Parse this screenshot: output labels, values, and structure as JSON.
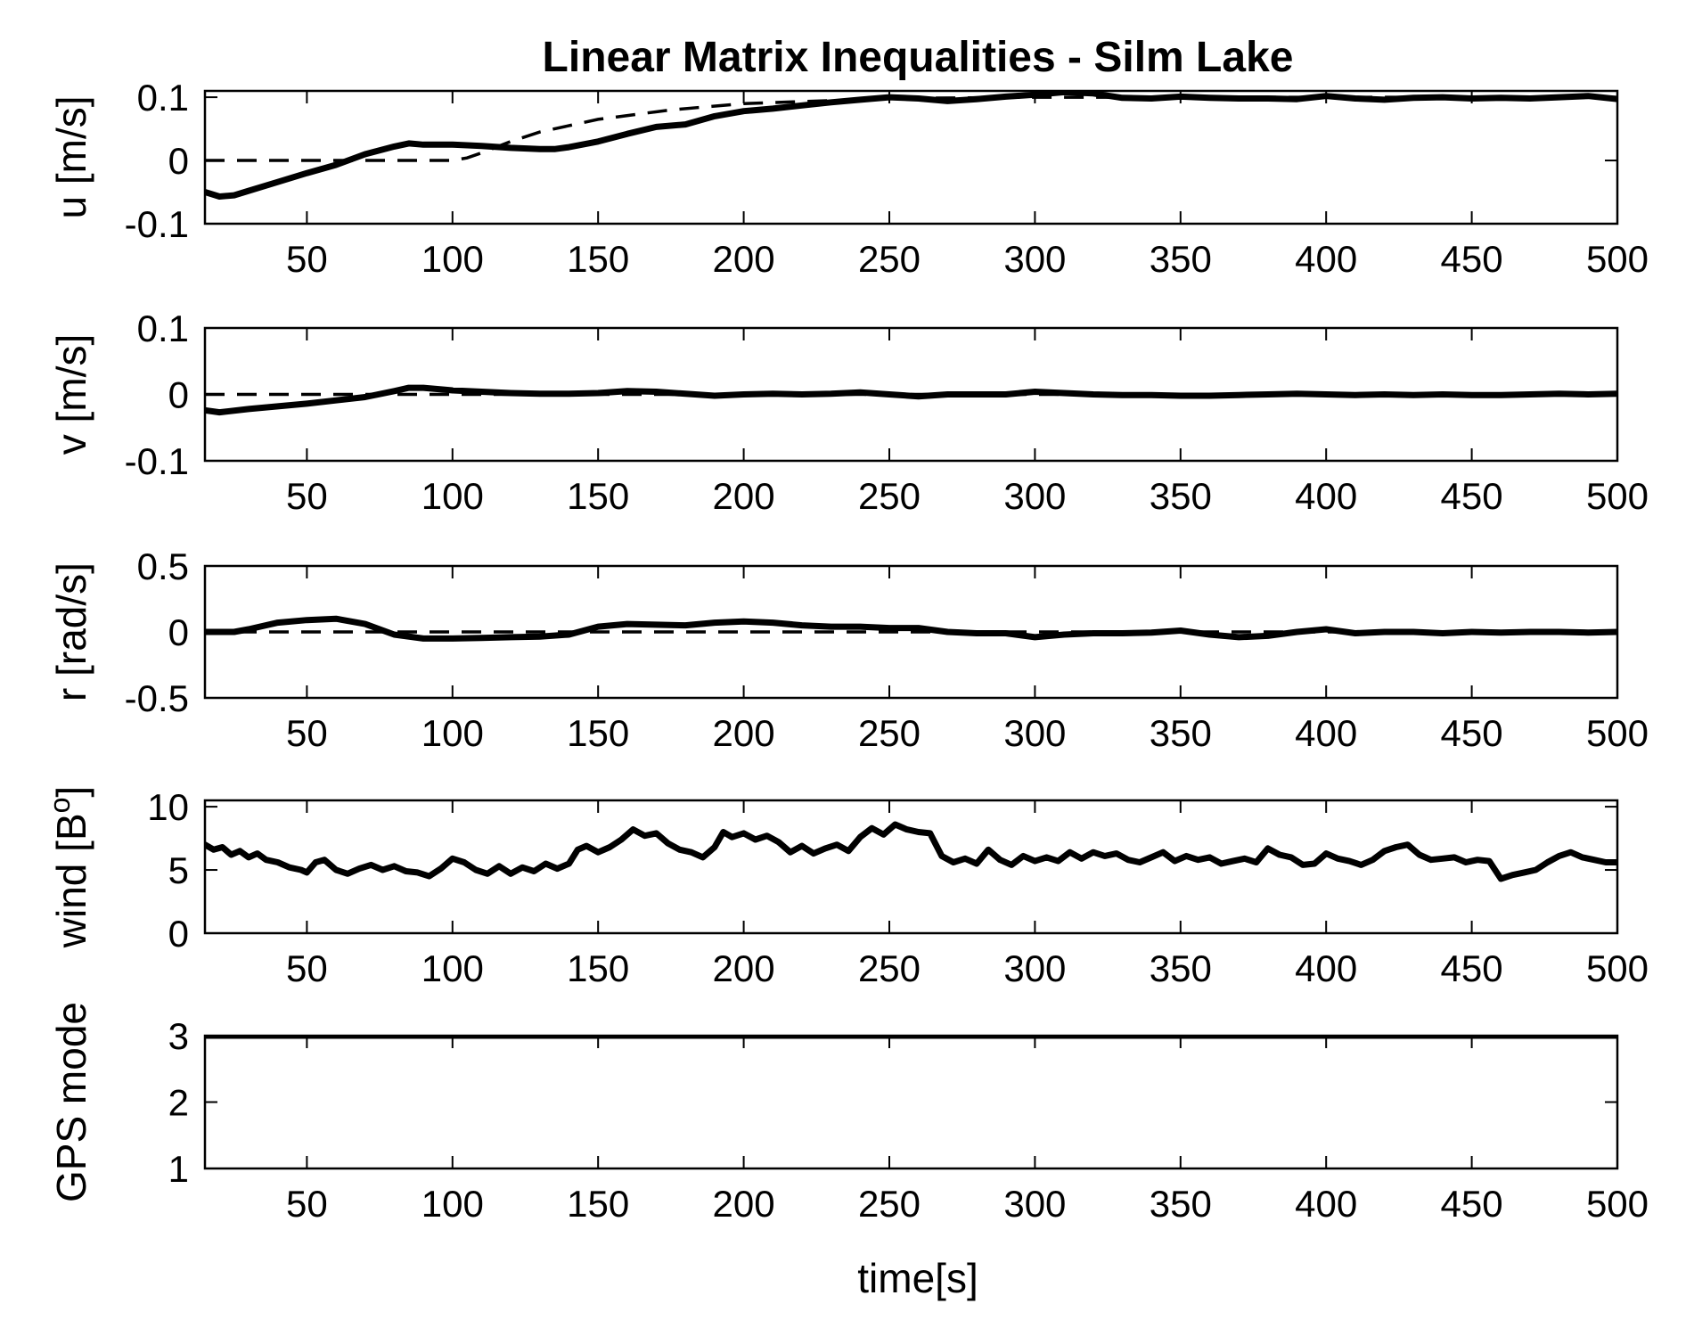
{
  "chart_data": {
    "type": "line",
    "title": "Linear Matrix Inequalities - Silm Lake",
    "xlabel": "time[s]",
    "xlim": [
      15,
      500
    ],
    "xticks": [
      50,
      100,
      150,
      200,
      250,
      300,
      350,
      400,
      450,
      500
    ],
    "subplots": [
      {
        "id": "u",
        "ylabel": "u [m/s]",
        "ylim": [
          -0.1,
          0.11
        ],
        "yticks": [
          -0.1,
          0,
          0.1
        ],
        "ytick_labels": [
          "-0.1",
          "0",
          "0.1"
        ],
        "measured": {
          "x": [
            15,
            20,
            25,
            30,
            40,
            50,
            60,
            70,
            80,
            85,
            90,
            100,
            110,
            120,
            130,
            135,
            140,
            150,
            160,
            170,
            180,
            190,
            200,
            210,
            220,
            230,
            240,
            250,
            260,
            270,
            280,
            290,
            300,
            310,
            320,
            330,
            340,
            350,
            360,
            370,
            380,
            390,
            400,
            410,
            420,
            430,
            440,
            450,
            460,
            470,
            480,
            490,
            500
          ],
          "y": [
            -0.05,
            -0.057,
            -0.055,
            -0.048,
            -0.034,
            -0.02,
            -0.007,
            0.01,
            0.022,
            0.027,
            0.025,
            0.025,
            0.023,
            0.02,
            0.018,
            0.018,
            0.021,
            0.03,
            0.042,
            0.053,
            0.057,
            0.07,
            0.078,
            0.082,
            0.087,
            0.092,
            0.096,
            0.1,
            0.098,
            0.094,
            0.097,
            0.101,
            0.104,
            0.108,
            0.106,
            0.099,
            0.098,
            0.101,
            0.099,
            0.098,
            0.098,
            0.097,
            0.102,
            0.098,
            0.096,
            0.099,
            0.1,
            0.098,
            0.099,
            0.098,
            0.1,
            0.102,
            0.097
          ]
        },
        "reference": {
          "x": [
            15,
            100,
            105,
            110,
            120,
            130,
            150,
            175,
            200,
            250,
            300,
            350,
            400,
            500
          ],
          "y": [
            0,
            0,
            0.004,
            0.012,
            0.03,
            0.045,
            0.065,
            0.08,
            0.09,
            0.098,
            0.1,
            0.1,
            0.1,
            0.1
          ]
        }
      },
      {
        "id": "v",
        "ylabel": "v [m/s]",
        "ylim": [
          -0.1,
          0.1
        ],
        "yticks": [
          -0.1,
          0,
          0.1
        ],
        "ytick_labels": [
          "-0.1",
          "0",
          "0.1"
        ],
        "measured": {
          "x": [
            15,
            20,
            30,
            40,
            50,
            60,
            70,
            80,
            85,
            90,
            100,
            110,
            120,
            130,
            140,
            150,
            160,
            170,
            180,
            190,
            200,
            210,
            220,
            230,
            240,
            250,
            260,
            270,
            280,
            290,
            300,
            310,
            320,
            330,
            340,
            350,
            360,
            370,
            380,
            390,
            400,
            410,
            420,
            430,
            440,
            450,
            460,
            470,
            480,
            490,
            500
          ],
          "y": [
            -0.024,
            -0.027,
            -0.022,
            -0.018,
            -0.014,
            -0.009,
            -0.004,
            0.005,
            0.01,
            0.01,
            0.006,
            0.004,
            0.002,
            0.001,
            0.001,
            0.002,
            0.005,
            0.004,
            0.001,
            -0.002,
            0.0,
            0.001,
            0.0,
            0.001,
            0.003,
            0.0,
            -0.003,
            0.0,
            0.0,
            0.0,
            0.004,
            0.002,
            0.0,
            -0.001,
            -0.001,
            -0.002,
            -0.002,
            -0.001,
            0.0,
            0.001,
            0.0,
            -0.001,
            0.0,
            -0.001,
            0.0,
            -0.001,
            -0.001,
            0.0,
            0.001,
            0.0,
            0.001
          ]
        },
        "reference": {
          "x": [
            15,
            500
          ],
          "y": [
            0,
            0
          ]
        }
      },
      {
        "id": "r",
        "ylabel": "r [rad/s]",
        "ylim": [
          -0.5,
          0.5
        ],
        "yticks": [
          -0.5,
          0,
          0.5
        ],
        "ytick_labels": [
          "-0.5",
          "0",
          "0.5"
        ],
        "measured": {
          "x": [
            15,
            25,
            30,
            40,
            50,
            60,
            70,
            80,
            90,
            100,
            110,
            120,
            130,
            140,
            150,
            160,
            170,
            180,
            190,
            200,
            210,
            220,
            230,
            240,
            250,
            260,
            270,
            280,
            290,
            300,
            310,
            320,
            330,
            340,
            350,
            360,
            370,
            380,
            390,
            400,
            410,
            420,
            430,
            440,
            450,
            460,
            470,
            480,
            490,
            500
          ],
          "y": [
            0.0,
            0.0,
            0.02,
            0.07,
            0.09,
            0.1,
            0.06,
            -0.02,
            -0.05,
            -0.05,
            -0.045,
            -0.04,
            -0.035,
            -0.02,
            0.04,
            0.06,
            0.055,
            0.05,
            0.07,
            0.08,
            0.07,
            0.05,
            0.04,
            0.04,
            0.03,
            0.03,
            0.0,
            -0.01,
            -0.01,
            -0.04,
            -0.02,
            -0.01,
            -0.01,
            -0.005,
            0.01,
            -0.02,
            -0.04,
            -0.03,
            0.0,
            0.02,
            -0.01,
            0.0,
            0.0,
            -0.01,
            0.0,
            -0.005,
            0.0,
            0.0,
            -0.005,
            0.0
          ]
        },
        "reference": {
          "x": [
            15,
            500
          ],
          "y": [
            0,
            0
          ]
        }
      },
      {
        "id": "wind",
        "ylabel": "wind [B",
        "ylabel_superscript": "o",
        "ylabel_suffix": "]",
        "ylim": [
          0,
          10.5
        ],
        "yticks": [
          0,
          5,
          10
        ],
        "ytick_labels": [
          "0",
          "5",
          "10"
        ],
        "measured": {
          "x": [
            15,
            18,
            21,
            24,
            27,
            30,
            33,
            36,
            40,
            44,
            48,
            50,
            53,
            56,
            60,
            64,
            68,
            72,
            76,
            80,
            84,
            88,
            92,
            96,
            100,
            104,
            108,
            112,
            116,
            120,
            124,
            128,
            132,
            136,
            140,
            143,
            146,
            150,
            154,
            158,
            162,
            166,
            170,
            174,
            178,
            182,
            186,
            190,
            193,
            196,
            200,
            204,
            208,
            212,
            216,
            220,
            224,
            228,
            232,
            236,
            240,
            244,
            248,
            252,
            256,
            260,
            264,
            268,
            272,
            276,
            280,
            284,
            288,
            292,
            296,
            300,
            304,
            308,
            312,
            316,
            320,
            324,
            328,
            332,
            336,
            340,
            344,
            348,
            352,
            356,
            360,
            364,
            368,
            372,
            376,
            380,
            384,
            388,
            392,
            396,
            400,
            404,
            408,
            412,
            416,
            420,
            424,
            428,
            432,
            436,
            440,
            444,
            448,
            452,
            456,
            460,
            464,
            468,
            472,
            476,
            480,
            484,
            488,
            492,
            496,
            500
          ],
          "y": [
            7.0,
            6.6,
            6.8,
            6.2,
            6.5,
            6.0,
            6.3,
            5.8,
            5.6,
            5.2,
            5.0,
            4.8,
            5.6,
            5.8,
            5.0,
            4.7,
            5.1,
            5.4,
            5.0,
            5.3,
            4.9,
            4.8,
            4.5,
            5.1,
            5.9,
            5.6,
            5.0,
            4.7,
            5.3,
            4.7,
            5.2,
            4.9,
            5.5,
            5.1,
            5.5,
            6.6,
            6.9,
            6.4,
            6.8,
            7.4,
            8.2,
            7.7,
            7.9,
            7.1,
            6.6,
            6.4,
            6.0,
            6.8,
            8.0,
            7.6,
            7.9,
            7.4,
            7.7,
            7.2,
            6.4,
            6.9,
            6.3,
            6.7,
            7.0,
            6.5,
            7.6,
            8.3,
            7.8,
            8.6,
            8.2,
            8.0,
            7.9,
            6.1,
            5.6,
            5.9,
            5.5,
            6.6,
            5.8,
            5.4,
            6.1,
            5.7,
            6.0,
            5.7,
            6.4,
            5.9,
            6.4,
            6.1,
            6.3,
            5.8,
            5.6,
            6.0,
            6.4,
            5.7,
            6.1,
            5.8,
            6.0,
            5.5,
            5.7,
            5.9,
            5.6,
            6.7,
            6.2,
            6.0,
            5.4,
            5.5,
            6.3,
            5.9,
            5.7,
            5.4,
            5.8,
            6.5,
            6.8,
            7.0,
            6.2,
            5.8,
            5.9,
            6.0,
            5.6,
            5.8,
            5.7,
            4.3,
            4.6,
            4.8,
            5.0,
            5.6,
            6.1,
            6.4,
            6.0,
            5.8,
            5.6,
            5.6
          ]
        },
        "reference": null
      },
      {
        "id": "gps",
        "ylabel": "GPS mode",
        "ylim": [
          1,
          3
        ],
        "yticks": [
          1,
          2,
          3
        ],
        "ytick_labels": [
          "1",
          "2",
          "3"
        ],
        "measured": {
          "x": [
            15,
            500
          ],
          "y": [
            3,
            3
          ]
        },
        "reference": null
      }
    ]
  }
}
